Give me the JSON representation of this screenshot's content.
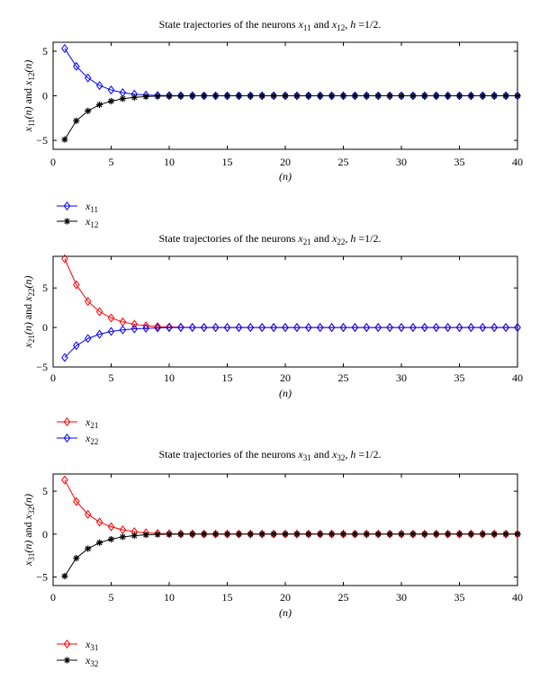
{
  "chart_data": [
    {
      "type": "line",
      "title": {
        "pre": "State trajectories of the neurons ",
        "v1": "x",
        "s1": "11",
        "mid": " and ",
        "v2": "x",
        "s2": "12",
        "post_pre": ", ",
        "h": "h",
        "post": " =1/2."
      },
      "ylabel": {
        "v1": "x",
        "s1": "11",
        "arg": "(n)",
        "mid": " and ",
        "v2": "x",
        "s2": "12"
      },
      "xlabel": "(n)",
      "xlim": [
        0,
        40
      ],
      "ylim": [
        -6,
        6
      ],
      "xticks": [
        0,
        5,
        10,
        15,
        20,
        25,
        30,
        35,
        40
      ],
      "yticks": [
        -5,
        0,
        5
      ],
      "grid": false,
      "legend_position": "below-left",
      "x": [
        1,
        2,
        3,
        4,
        5,
        6,
        7,
        8,
        9,
        10,
        11,
        12,
        13,
        14,
        15,
        16,
        17,
        18,
        19,
        20,
        21,
        22,
        23,
        24,
        25,
        26,
        27,
        28,
        29,
        30,
        31,
        32,
        33,
        34,
        35,
        36,
        37,
        38,
        39,
        40
      ],
      "series": [
        {
          "name": {
            "v": "x",
            "s": "11"
          },
          "color": "#0000ff",
          "marker": "diamond",
          "values": [
            5.3,
            3.3,
            2.0,
            1.15,
            0.65,
            0.35,
            0.18,
            0.09,
            0.04,
            0.02,
            0.01,
            0,
            0,
            0,
            0,
            0,
            0,
            0,
            0,
            0,
            0,
            0,
            0,
            0,
            0,
            0,
            0,
            0,
            0,
            0,
            0,
            0,
            0,
            0,
            0,
            0,
            0,
            0,
            0,
            0
          ]
        },
        {
          "name": {
            "v": "x",
            "s": "12"
          },
          "color": "#000000",
          "marker": "star",
          "values": [
            -4.9,
            -2.8,
            -1.7,
            -1.0,
            -0.6,
            -0.33,
            -0.18,
            -0.09,
            -0.04,
            -0.02,
            -0.01,
            0,
            0,
            0,
            0,
            0,
            0,
            0,
            0,
            0,
            0,
            0,
            0,
            0,
            0,
            0,
            0,
            0,
            0,
            0,
            0,
            0,
            0,
            0,
            0,
            0,
            0,
            0,
            0,
            0
          ]
        }
      ]
    },
    {
      "type": "line",
      "title": {
        "pre": "State trajectories of the neurons ",
        "v1": "x",
        "s1": "21",
        "mid": " and ",
        "v2": "x",
        "s2": "22",
        "post_pre": ", ",
        "h": "h",
        "post": " =1/2."
      },
      "ylabel": {
        "v1": "x",
        "s1": "21",
        "arg": "(n)",
        "mid": " and ",
        "v2": "x",
        "s2": "22"
      },
      "xlabel": "(n)",
      "xlim": [
        0,
        40
      ],
      "ylim": [
        -5,
        9
      ],
      "xticks": [
        0,
        5,
        10,
        15,
        20,
        25,
        30,
        35,
        40
      ],
      "yticks": [
        -5,
        0,
        5
      ],
      "grid": false,
      "legend_position": "below-left",
      "x": [
        1,
        2,
        3,
        4,
        5,
        6,
        7,
        8,
        9,
        10,
        11,
        12,
        13,
        14,
        15,
        16,
        17,
        18,
        19,
        20,
        21,
        22,
        23,
        24,
        25,
        26,
        27,
        28,
        29,
        30,
        31,
        32,
        33,
        34,
        35,
        36,
        37,
        38,
        39,
        40
      ],
      "series": [
        {
          "name": {
            "v": "x",
            "s": "21"
          },
          "color": "#ff0000",
          "marker": "diamond",
          "values": [
            8.7,
            5.4,
            3.3,
            2.0,
            1.2,
            0.7,
            0.4,
            0.22,
            0.12,
            0.06,
            0.03,
            0.01,
            0,
            0,
            0,
            0,
            0,
            0,
            0,
            0,
            0,
            0,
            0,
            0,
            0,
            0,
            0,
            0,
            0,
            0,
            0,
            0,
            0,
            0,
            0,
            0,
            0,
            0,
            0,
            0
          ]
        },
        {
          "name": {
            "v": "x",
            "s": "22"
          },
          "color": "#0000ff",
          "marker": "diamond",
          "values": [
            -3.8,
            -2.3,
            -1.4,
            -0.85,
            -0.5,
            -0.3,
            -0.18,
            -0.1,
            -0.05,
            -0.02,
            -0.01,
            0,
            0,
            0,
            0,
            0,
            0,
            0,
            0,
            0,
            0,
            0,
            0,
            0,
            0,
            0,
            0,
            0,
            0,
            0,
            0,
            0,
            0,
            0,
            0,
            0,
            0,
            0,
            0,
            0
          ]
        }
      ]
    },
    {
      "type": "line",
      "title": {
        "pre": "State trajectories of the neurons ",
        "v1": "x",
        "s1": "31",
        "mid": " and ",
        "v2": "x",
        "s2": "32",
        "post_pre": ", ",
        "h": "h",
        "post": " =1/2."
      },
      "ylabel": {
        "v1": "x",
        "s1": "31",
        "arg": "(n)",
        "mid": " and ",
        "v2": "x",
        "s2": "32"
      },
      "xlabel": "(n)",
      "xlim": [
        0,
        40
      ],
      "ylim": [
        -6,
        7
      ],
      "xticks": [
        0,
        5,
        10,
        15,
        20,
        25,
        30,
        35,
        40
      ],
      "yticks": [
        -5,
        0,
        5
      ],
      "grid": false,
      "legend_position": "below-left",
      "x": [
        1,
        2,
        3,
        4,
        5,
        6,
        7,
        8,
        9,
        10,
        11,
        12,
        13,
        14,
        15,
        16,
        17,
        18,
        19,
        20,
        21,
        22,
        23,
        24,
        25,
        26,
        27,
        28,
        29,
        30,
        31,
        32,
        33,
        34,
        35,
        36,
        37,
        38,
        39,
        40
      ],
      "series": [
        {
          "name": {
            "v": "x",
            "s": "31"
          },
          "color": "#ff0000",
          "marker": "diamond",
          "values": [
            6.3,
            3.8,
            2.3,
            1.4,
            0.85,
            0.5,
            0.28,
            0.15,
            0.08,
            0.04,
            0.02,
            0.01,
            0,
            0,
            0,
            0,
            0,
            0,
            0,
            0,
            0,
            0,
            0,
            0,
            0,
            0,
            0,
            0,
            0,
            0,
            0,
            0,
            0,
            0,
            0,
            0,
            0,
            0,
            0,
            0
          ]
        },
        {
          "name": {
            "v": "x",
            "s": "32"
          },
          "color": "#000000",
          "marker": "star",
          "values": [
            -4.9,
            -2.8,
            -1.7,
            -1.0,
            -0.6,
            -0.33,
            -0.18,
            -0.09,
            -0.04,
            -0.02,
            -0.01,
            0,
            0,
            0,
            0,
            0,
            0,
            0,
            0,
            0,
            0,
            0,
            0,
            0,
            0,
            0,
            0,
            0,
            0,
            0,
            0,
            0,
            0,
            0,
            0,
            0,
            0,
            0,
            0,
            0
          ]
        }
      ]
    }
  ]
}
